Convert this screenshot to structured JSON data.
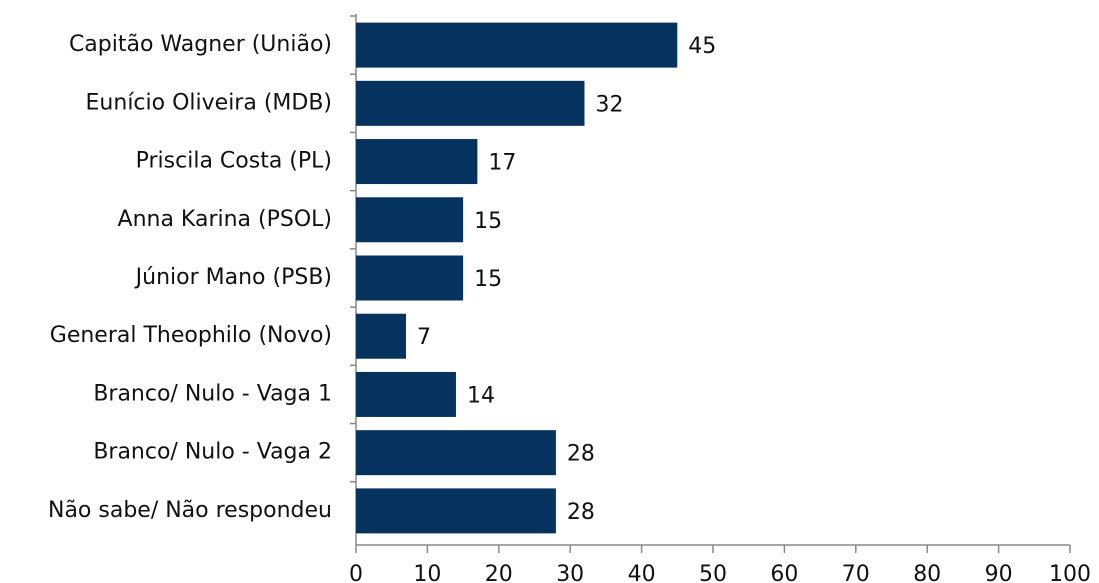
{
  "chart_data": {
    "type": "bar",
    "orientation": "horizontal",
    "categories": [
      "Capitão Wagner (União)",
      "Eunício Oliveira (MDB)",
      "Priscila Costa (PL)",
      "Anna Karina (PSOL)",
      "Júnior Mano (PSB)",
      "General Theophilo (Novo)",
      "Branco/ Nulo - Vaga 1",
      "Branco/ Nulo - Vaga 2",
      "Não sabe/ Não respondeu"
    ],
    "values": [
      45,
      32,
      17,
      15,
      15,
      7,
      14,
      28,
      28
    ],
    "color": "#06325f",
    "xlim": [
      0,
      100
    ],
    "xticks": [
      0,
      10,
      20,
      30,
      40,
      50,
      60,
      70,
      80,
      90,
      100
    ],
    "grid": false
  }
}
